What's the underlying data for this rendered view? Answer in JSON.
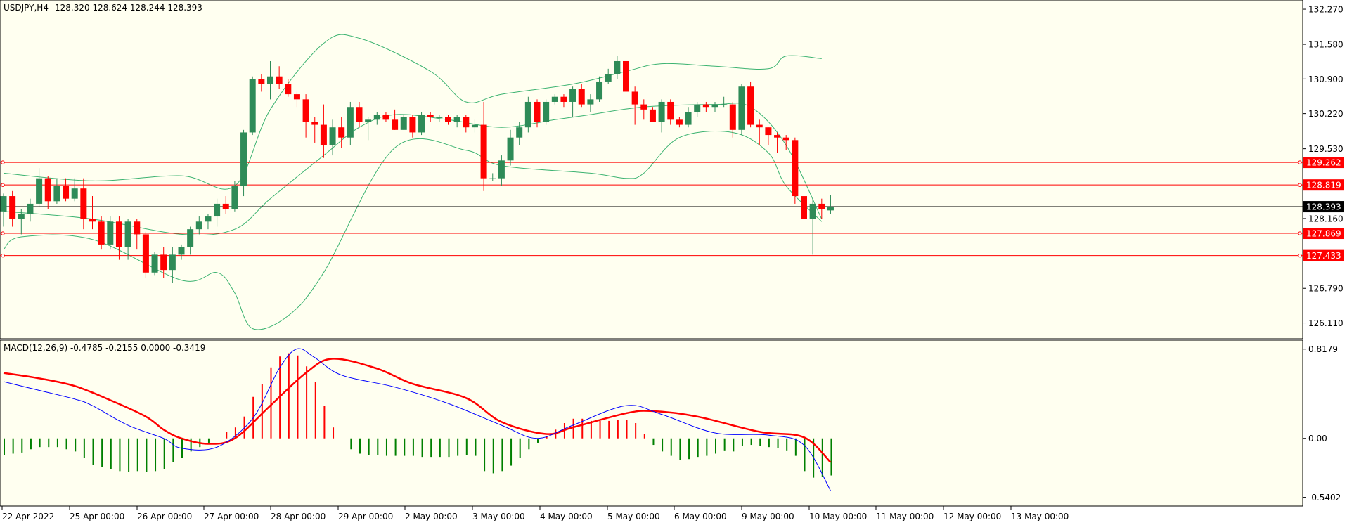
{
  "header": {
    "symbol": "USDJPY,H4",
    "ohlc": "128.320 128.624 128.244 128.393"
  },
  "indicator_header": "MACD(12,26,9) -0.4785 -0.2155 0.0000 -0.3419",
  "colors": {
    "background_chart": "#FFFFF0",
    "bull": "#2E8B57",
    "bear": "#FF0000",
    "bands": "#3CB371",
    "macd_line": "#0000FF",
    "signal_line": "#FF0000",
    "level": "#FF0000",
    "current": "#000000"
  },
  "chart_data": [
    {
      "type": "candlestick",
      "title": "USDJPY,H4",
      "ylim": [
        125.8,
        132.45
      ],
      "price_ticks": [
        "132.270",
        "131.580",
        "130.900",
        "130.220",
        "129.530",
        "128.160",
        "126.790",
        "126.110"
      ],
      "price_tick_values": [
        132.27,
        131.58,
        130.9,
        130.22,
        129.53,
        128.16,
        126.79,
        126.11
      ],
      "x_labels": [
        "22 Apr 2022",
        "25 Apr 00:00",
        "26 Apr 00:00",
        "27 Apr 00:00",
        "28 Apr 00:00",
        "29 Apr 00:00",
        "2 May 00:00",
        "3 May 00:00",
        "4 May 00:00",
        "5 May 00:00",
        "6 May 00:00",
        "9 May 00:00",
        "10 May 00:00",
        "11 May 00:00",
        "12 May 00:00",
        "13 May 00:00"
      ],
      "horizontal_levels": [
        {
          "label": "129.262",
          "value": 129.262
        },
        {
          "label": "128.819",
          "value": 128.819
        },
        {
          "label": "127.869",
          "value": 127.869
        },
        {
          "label": "127.433",
          "value": 127.433
        }
      ],
      "current_price": {
        "label": "128.393",
        "value": 128.393
      },
      "candles": [
        [
          128.3,
          128.65,
          128.0,
          128.6
        ],
        [
          128.6,
          128.7,
          128.0,
          128.15
        ],
        [
          128.15,
          128.35,
          127.85,
          128.25
        ],
        [
          128.25,
          128.55,
          128.1,
          128.45
        ],
        [
          128.45,
          129.15,
          128.4,
          128.95
        ],
        [
          128.95,
          129.0,
          128.35,
          128.5
        ],
        [
          128.5,
          128.95,
          128.45,
          128.8
        ],
        [
          128.8,
          128.95,
          128.5,
          128.55
        ],
        [
          128.55,
          128.95,
          128.5,
          128.75
        ],
        [
          128.75,
          128.95,
          127.95,
          128.15
        ],
        [
          128.15,
          128.6,
          127.95,
          128.1
        ],
        [
          128.1,
          128.2,
          127.55,
          127.65
        ],
        [
          127.65,
          128.2,
          127.55,
          128.1
        ],
        [
          128.1,
          128.2,
          127.35,
          127.6
        ],
        [
          127.6,
          128.15,
          127.35,
          128.1
        ],
        [
          128.1,
          128.15,
          127.55,
          127.85
        ],
        [
          127.85,
          127.9,
          127.0,
          127.1
        ],
        [
          127.1,
          127.5,
          127.05,
          127.45
        ],
        [
          127.45,
          127.6,
          127.0,
          127.15
        ],
        [
          127.15,
          127.6,
          126.9,
          127.45
        ],
        [
          127.45,
          127.65,
          127.35,
          127.6
        ],
        [
          127.6,
          128.0,
          127.45,
          127.95
        ],
        [
          127.95,
          128.2,
          127.85,
          128.1
        ],
        [
          128.1,
          128.25,
          127.95,
          128.2
        ],
        [
          128.2,
          128.55,
          128.0,
          128.45
        ],
        [
          128.45,
          128.6,
          128.25,
          128.35
        ],
        [
          128.35,
          128.9,
          128.3,
          128.8
        ],
        [
          128.8,
          129.9,
          128.6,
          129.85
        ],
        [
          129.85,
          130.95,
          129.8,
          130.9
        ],
        [
          130.9,
          131.0,
          130.65,
          130.8
        ],
        [
          130.8,
          131.25,
          130.5,
          130.95
        ],
        [
          130.95,
          131.15,
          130.7,
          130.8
        ],
        [
          130.8,
          130.9,
          130.55,
          130.6
        ],
        [
          130.6,
          130.65,
          130.35,
          130.5
        ],
        [
          130.5,
          130.6,
          129.75,
          130.05
        ],
        [
          130.05,
          130.15,
          129.65,
          130.0
        ],
        [
          130.0,
          130.4,
          129.35,
          129.6
        ],
        [
          129.6,
          130.1,
          129.4,
          129.95
        ],
        [
          129.95,
          130.15,
          129.55,
          129.75
        ],
        [
          129.75,
          130.45,
          129.6,
          130.35
        ],
        [
          130.35,
          130.45,
          129.95,
          130.05
        ],
        [
          130.05,
          130.15,
          129.7,
          130.1
        ],
        [
          130.1,
          130.25,
          130.0,
          130.2
        ],
        [
          130.2,
          130.25,
          130.05,
          130.1
        ],
        [
          130.1,
          130.3,
          129.9,
          129.9
        ],
        [
          129.9,
          130.2,
          129.9,
          130.15
        ],
        [
          130.15,
          130.2,
          129.75,
          129.85
        ],
        [
          129.85,
          130.25,
          129.8,
          130.2
        ],
        [
          130.2,
          130.25,
          130.05,
          130.15
        ],
        [
          130.15,
          130.2,
          130.05,
          130.15
        ],
        [
          130.15,
          130.2,
          130.0,
          130.05
        ],
        [
          130.05,
          130.2,
          129.95,
          130.15
        ],
        [
          130.15,
          130.2,
          129.85,
          129.95
        ],
        [
          129.95,
          130.1,
          129.85,
          130.0
        ],
        [
          130.0,
          130.45,
          128.7,
          128.95
        ],
        [
          128.95,
          129.05,
          128.9,
          128.95
        ],
        [
          128.95,
          129.4,
          128.8,
          129.3
        ],
        [
          129.3,
          129.9,
          129.2,
          129.75
        ],
        [
          129.75,
          130.05,
          129.6,
          129.95
        ],
        [
          129.95,
          130.55,
          129.85,
          130.45
        ],
        [
          130.45,
          130.5,
          129.95,
          130.05
        ],
        [
          130.05,
          130.5,
          130.0,
          130.45
        ],
        [
          130.45,
          130.6,
          130.4,
          130.55
        ],
        [
          130.55,
          130.6,
          130.35,
          130.45
        ],
        [
          130.45,
          130.75,
          130.15,
          130.7
        ],
        [
          130.7,
          130.8,
          130.35,
          130.4
        ],
        [
          130.4,
          130.6,
          130.25,
          130.5
        ],
        [
          130.5,
          130.95,
          130.45,
          130.85
        ],
        [
          130.85,
          131.1,
          130.8,
          131.0
        ],
        [
          131.0,
          131.35,
          130.9,
          131.25
        ],
        [
          131.25,
          131.3,
          130.6,
          130.65
        ],
        [
          130.65,
          130.75,
          130.0,
          130.4
        ],
        [
          130.4,
          130.5,
          130.1,
          130.3
        ],
        [
          130.3,
          130.35,
          130.05,
          130.05
        ],
        [
          130.05,
          130.5,
          129.85,
          130.45
        ],
        [
          130.45,
          130.5,
          130.0,
          130.1
        ],
        [
          130.1,
          130.15,
          129.95,
          130.0
        ],
        [
          130.0,
          130.35,
          129.95,
          130.25
        ],
        [
          130.25,
          130.45,
          130.15,
          130.4
        ],
        [
          130.4,
          130.45,
          130.25,
          130.35
        ],
        [
          130.35,
          130.45,
          130.25,
          130.4
        ],
        [
          130.4,
          130.55,
          130.35,
          130.4
        ],
        [
          130.4,
          130.45,
          129.75,
          129.9
        ],
        [
          129.9,
          130.8,
          129.8,
          130.75
        ],
        [
          130.75,
          130.85,
          129.95,
          130.0
        ],
        [
          130.0,
          130.1,
          129.6,
          129.95
        ],
        [
          129.95,
          129.95,
          129.6,
          129.8
        ],
        [
          129.8,
          129.85,
          129.45,
          129.75
        ],
        [
          129.75,
          129.8,
          129.5,
          129.7
        ],
        [
          129.7,
          129.75,
          128.45,
          128.6
        ],
        [
          128.6,
          128.7,
          127.95,
          128.15
        ],
        [
          128.15,
          128.55,
          127.45,
          128.45
        ],
        [
          128.45,
          128.55,
          128.15,
          128.35
        ],
        [
          128.32,
          128.624,
          128.244,
          128.393
        ]
      ],
      "bollinger_upper": [
        [
          0,
          129.05
        ],
        [
          10,
          128.9
        ],
        [
          20,
          129.0
        ],
        [
          26,
          128.8
        ],
        [
          30,
          130.3
        ],
        [
          36,
          131.6
        ],
        [
          40,
          131.7
        ],
        [
          48,
          131.05
        ],
        [
          52,
          130.45
        ],
        [
          56,
          130.6
        ],
        [
          64,
          130.8
        ],
        [
          70,
          131.05
        ],
        [
          74,
          131.2
        ],
        [
          80,
          131.15
        ],
        [
          86,
          131.1
        ],
        [
          88,
          131.35
        ],
        [
          92,
          131.3
        ]
      ],
      "bollinger_middle": [
        [
          0,
          128.3
        ],
        [
          10,
          128.15
        ],
        [
          20,
          127.85
        ],
        [
          26,
          127.95
        ],
        [
          30,
          128.55
        ],
        [
          36,
          129.4
        ],
        [
          40,
          129.95
        ],
        [
          44,
          130.2
        ],
        [
          50,
          130.1
        ],
        [
          56,
          129.95
        ],
        [
          62,
          130.1
        ],
        [
          66,
          130.2
        ],
        [
          72,
          130.35
        ],
        [
          80,
          130.4
        ],
        [
          84,
          130.35
        ],
        [
          88,
          129.6
        ],
        [
          92,
          128.15
        ]
      ],
      "bollinger_lower": [
        [
          0,
          127.55
        ],
        [
          2,
          127.8
        ],
        [
          10,
          127.75
        ],
        [
          20,
          126.95
        ],
        [
          24,
          127.1
        ],
        [
          26,
          126.7
        ],
        [
          28,
          126.0
        ],
        [
          32,
          126.25
        ],
        [
          36,
          127.1
        ],
        [
          44,
          129.55
        ],
        [
          52,
          129.5
        ],
        [
          56,
          129.2
        ],
        [
          66,
          129.05
        ],
        [
          70,
          128.95
        ],
        [
          72,
          129.05
        ],
        [
          76,
          129.75
        ],
        [
          82,
          129.85
        ],
        [
          86,
          129.45
        ],
        [
          88,
          128.8
        ],
        [
          92,
          128.1
        ]
      ],
      "macd": {
        "title": "MACD(12,26,9) -0.4785 -0.2155 0.0000 -0.3419",
        "ylim": [
          -0.62,
          0.9
        ],
        "ticks": [
          "0.8179",
          "0.00",
          "-0.5402"
        ],
        "tick_values": [
          0.8179,
          0.0,
          -0.5402
        ],
        "histogram": [
          -0.15,
          -0.14,
          -0.13,
          -0.1,
          -0.08,
          -0.08,
          -0.08,
          -0.1,
          -0.12,
          -0.18,
          -0.24,
          -0.26,
          -0.28,
          -0.3,
          -0.31,
          -0.3,
          -0.31,
          -0.3,
          -0.28,
          -0.22,
          -0.18,
          -0.12,
          -0.08,
          -0.04,
          0.0,
          0.06,
          0.1,
          0.2,
          0.38,
          0.5,
          0.65,
          0.75,
          0.78,
          0.76,
          0.66,
          0.52,
          0.3,
          0.1,
          0.0,
          -0.1,
          -0.14,
          -0.15,
          -0.15,
          -0.16,
          -0.16,
          -0.16,
          -0.16,
          -0.17,
          -0.17,
          -0.17,
          -0.17,
          -0.16,
          -0.15,
          -0.16,
          -0.3,
          -0.32,
          -0.3,
          -0.25,
          -0.18,
          -0.1,
          -0.04,
          0.02,
          0.08,
          0.14,
          0.18,
          0.18,
          0.16,
          0.16,
          0.16,
          0.17,
          0.17,
          0.14,
          0.04,
          -0.06,
          -0.12,
          -0.16,
          -0.2,
          -0.19,
          -0.17,
          -0.16,
          -0.14,
          -0.11,
          -0.12,
          -0.07,
          -0.06,
          -0.07,
          -0.08,
          -0.09,
          -0.11,
          -0.16,
          -0.3,
          -0.36,
          -0.35,
          -0.34
        ],
        "macd_line": [
          [
            0,
            0.52
          ],
          [
            4,
            0.44
          ],
          [
            8,
            0.36
          ],
          [
            10,
            0.3
          ],
          [
            14,
            0.12
          ],
          [
            18,
            0.0
          ],
          [
            20,
            -0.09
          ],
          [
            24,
            -0.08
          ],
          [
            28,
            0.18
          ],
          [
            31,
            0.64
          ],
          [
            33,
            0.82
          ],
          [
            35,
            0.74
          ],
          [
            38,
            0.58
          ],
          [
            44,
            0.47
          ],
          [
            50,
            0.32
          ],
          [
            56,
            0.12
          ],
          [
            60,
            0.0
          ],
          [
            64,
            0.12
          ],
          [
            70,
            0.3
          ],
          [
            74,
            0.22
          ],
          [
            80,
            0.05
          ],
          [
            86,
            0.03
          ],
          [
            90,
            -0.06
          ],
          [
            93,
            -0.48
          ]
        ],
        "signal_line": [
          [
            0,
            0.6
          ],
          [
            4,
            0.55
          ],
          [
            8,
            0.48
          ],
          [
            12,
            0.35
          ],
          [
            16,
            0.2
          ],
          [
            18,
            0.08
          ],
          [
            20,
            0.0
          ],
          [
            23,
            -0.05
          ],
          [
            26,
            0.0
          ],
          [
            30,
            0.3
          ],
          [
            34,
            0.6
          ],
          [
            37,
            0.73
          ],
          [
            42,
            0.64
          ],
          [
            46,
            0.5
          ],
          [
            52,
            0.37
          ],
          [
            56,
            0.15
          ],
          [
            61,
            0.04
          ],
          [
            64,
            0.1
          ],
          [
            70,
            0.23
          ],
          [
            73,
            0.25
          ],
          [
            78,
            0.2
          ],
          [
            85,
            0.06
          ],
          [
            90,
            0.01
          ],
          [
            93,
            -0.22
          ]
        ]
      }
    }
  ]
}
